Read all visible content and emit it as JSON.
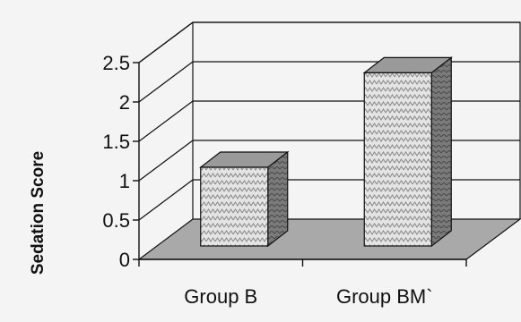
{
  "chart_data": {
    "type": "bar",
    "categories": [
      "Group B",
      "Group BM`"
    ],
    "values": [
      1.0,
      2.2
    ],
    "ylabel": "Sedation Score",
    "xlabel": "",
    "ylim": [
      0,
      2.5
    ],
    "yticks": [
      "0",
      "0.5",
      "1",
      "1.5",
      "2",
      "2.5"
    ],
    "grid": true,
    "style": "3d",
    "colors": {
      "background": "#f4f4f4",
      "floor": "#a9a9a9",
      "bar_front": "#dcdcdc",
      "bar_side": "#7a7a7a",
      "bar_top": "#9a9a9a",
      "line": "#111111"
    }
  }
}
